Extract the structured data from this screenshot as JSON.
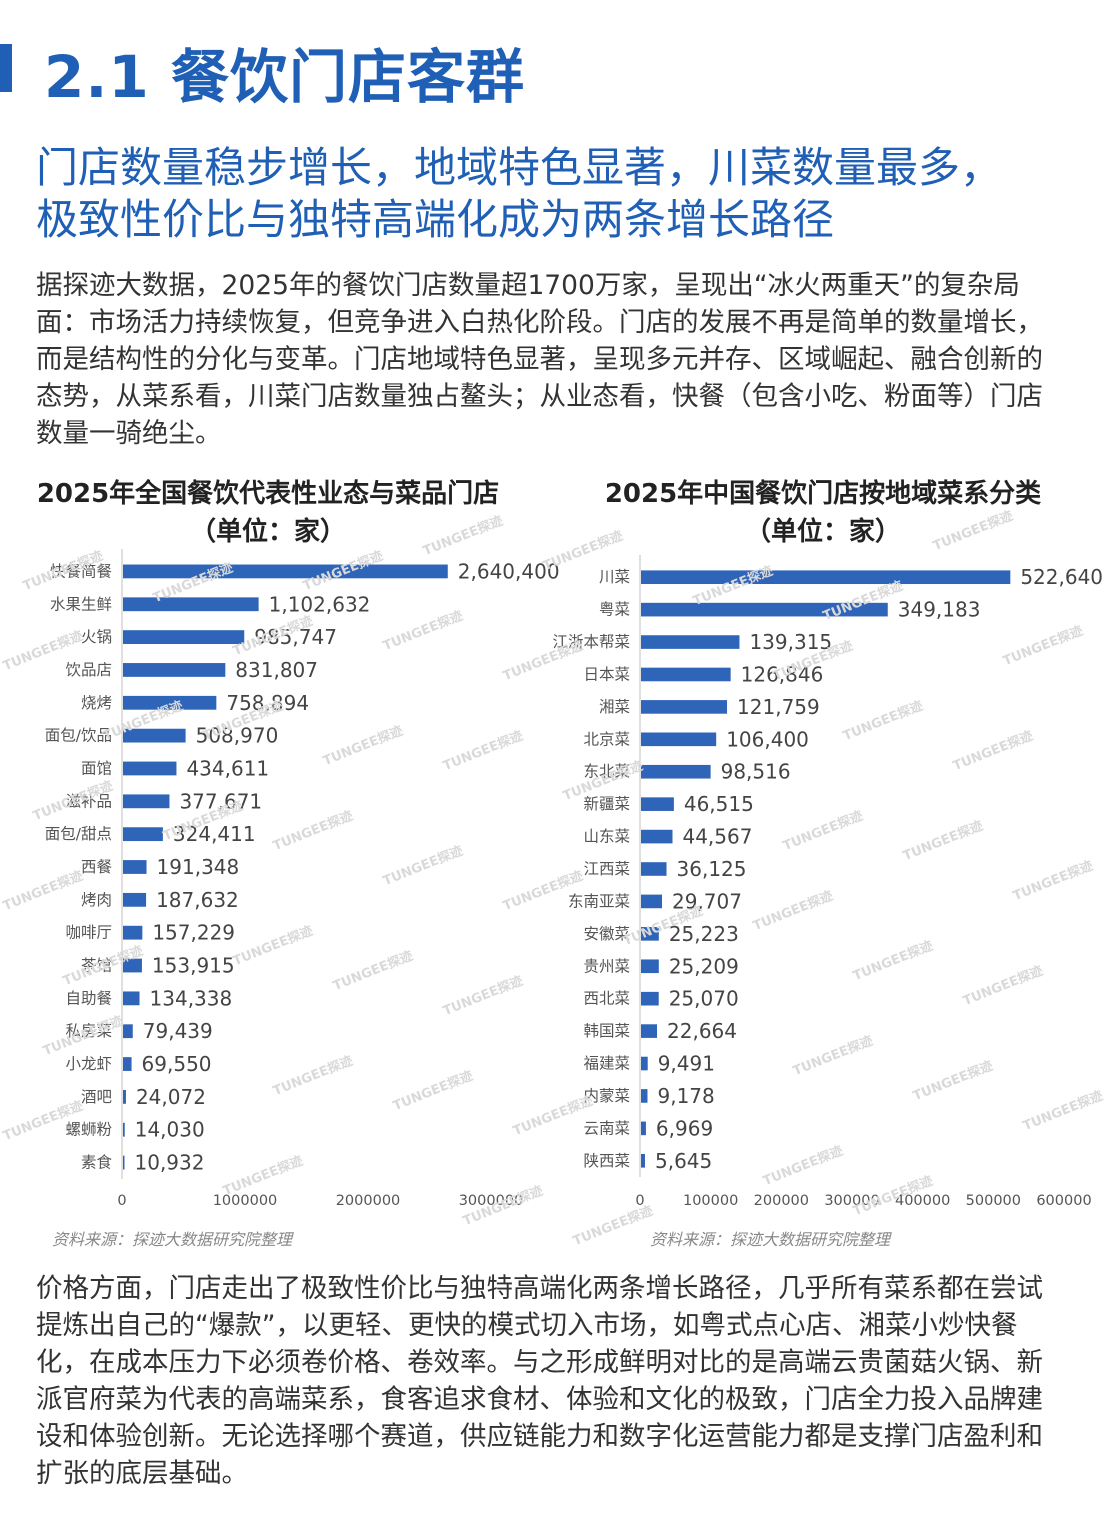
{
  "section_title": "2.1 餐饮门店客群",
  "headline": {
    "line1": "门店数量稳步增长，地域特色显著，川菜数量最多，",
    "line2": "极致性价比与独特高端化成为两条增长路径"
  },
  "intro_paragraph": "据探迹大数据，2025年的餐饮门店数量超1700万家，呈现出“冰火两重天”的复杂局面：市场活力持续恢复，但竞争进入白热化阶段。门店的发展不再是简单的数量增长，而是结构性的分化与变革。门店地域特色显著，呈现多元并存、区域崛起、融合创新的态势，从菜系看，川菜门店数量独占鳌头；从业态看，快餐（包含小吃、粉面等）门店数量一骑绝尘。",
  "closing_paragraph": "价格方面，门店走出了极致性价比与独特高端化两条增长路径，几乎所有菜系都在尝试提炼出自己的“爆款”，以更轻、更快的模式切入市场，如粤式点心店、湘菜小炒快餐化，在成本压力下必须卷价格、卷效率。与之形成鲜明对比的是高端云贵菌菇火锅、新派官府菜为代表的高端菜系，食客追求食材、体验和文化的极致，门店全力投入品牌建设和体验创新。无论选择哪个赛道，供应链能力和数字化运营能力都是支撑门店盈利和扩张的底层基础。",
  "watermark_text": "TUNGEE探迹",
  "colors": {
    "accent": "#1f5fb5",
    "bar": "#2f65b8"
  },
  "chart_data": [
    {
      "type": "bar",
      "orientation": "horizontal",
      "title": "2025年全国餐饮代表性业态与菜品门店",
      "subtitle": "（单位：家）",
      "source": "资料来源：探迹大数据研究院整理",
      "categories": [
        "快餐简餐",
        "水果生鲜",
        "火锅",
        "饮品店",
        "烧烤",
        "面包/饮品",
        "面馆",
        "滋补品",
        "面包/甜点",
        "西餐",
        "烤肉",
        "咖啡厅",
        "茶馆",
        "自助餐",
        "私房菜",
        "小龙虾",
        "酒吧",
        "螺蛳粉",
        "素食"
      ],
      "values": [
        2640400,
        1102632,
        985747,
        831807,
        758894,
        508970,
        434611,
        377671,
        324411,
        191348,
        187632,
        157229,
        153915,
        134338,
        79439,
        69550,
        24072,
        14030,
        10932
      ],
      "value_labels": [
        "2,640,400",
        "1,102,632",
        "985,747",
        "831,807",
        "758,894",
        "508,970",
        "434,611",
        "377,671",
        "324,411",
        "191,348",
        "187,632",
        "157,229",
        "153,915",
        "134,338",
        "79,439",
        "69,550",
        "24,072",
        "14,030",
        "10,932"
      ],
      "xlim": [
        0,
        3000000
      ],
      "x_ticks": [
        0,
        1000000,
        2000000,
        3000000
      ],
      "x_tick_labels": [
        "0",
        "1000000",
        "2000000",
        "3000000"
      ],
      "grid": false
    },
    {
      "type": "bar",
      "orientation": "horizontal",
      "title": "2025年中国餐饮门店按地域菜系分类",
      "subtitle": "（单位：家）",
      "source": "资料来源：探迹大数据研究院整理",
      "categories": [
        "川菜",
        "粤菜",
        "江浙本帮菜",
        "日本菜",
        "湘菜",
        "北京菜",
        "东北菜",
        "新疆菜",
        "山东菜",
        "江西菜",
        "东南亚菜",
        "安徽菜",
        "贵州菜",
        "西北菜",
        "韩国菜",
        "福建菜",
        "内蒙菜",
        "云南菜",
        "陕西菜"
      ],
      "values": [
        522640,
        349183,
        139315,
        126846,
        121759,
        106400,
        98516,
        46515,
        44567,
        36125,
        29707,
        25223,
        25209,
        25070,
        22664,
        9491,
        9178,
        6969,
        5645
      ],
      "value_labels": [
        "522,640",
        "349,183",
        "139,315",
        "126,846",
        "121,759",
        "106,400",
        "98,516",
        "46,515",
        "44,567",
        "36,125",
        "29,707",
        "25,223",
        "25,209",
        "25,070",
        "22,664",
        "9,491",
        "9,178",
        "6,969",
        "5,645"
      ],
      "xlim": [
        0,
        600000
      ],
      "x_ticks": [
        0,
        100000,
        200000,
        300000,
        400000,
        500000,
        600000
      ],
      "x_tick_labels": [
        "0",
        "100000",
        "200000",
        "300000",
        "400000",
        "500000",
        "600000"
      ],
      "grid": false
    }
  ]
}
